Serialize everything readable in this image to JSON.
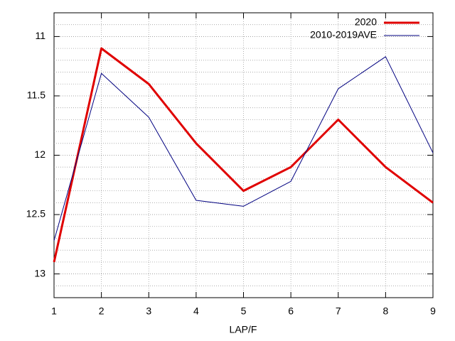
{
  "chart_data": {
    "type": "line",
    "x_label": "LAP/F",
    "x": [
      1,
      2,
      3,
      4,
      5,
      6,
      7,
      8,
      9
    ],
    "series": [
      {
        "name": "2020",
        "color": "#e00000",
        "values": [
          12.9,
          11.1,
          11.4,
          11.9,
          12.3,
          12.1,
          11.7,
          12.1,
          12.4
        ]
      },
      {
        "name": "2010-2019AVE",
        "color": "#000080",
        "values": [
          12.72,
          11.31,
          11.68,
          12.38,
          12.43,
          12.22,
          11.44,
          11.17,
          11.98
        ]
      }
    ],
    "xlim": [
      1,
      9
    ],
    "xticks": [
      1,
      2,
      3,
      4,
      5,
      6,
      7,
      8,
      9
    ],
    "ylim": [
      13.2,
      10.8
    ],
    "yticks": [
      11,
      11.5,
      12,
      12.5,
      13
    ],
    "minor_grid_step": 0.1,
    "grid": true,
    "legend": "top-right"
  }
}
